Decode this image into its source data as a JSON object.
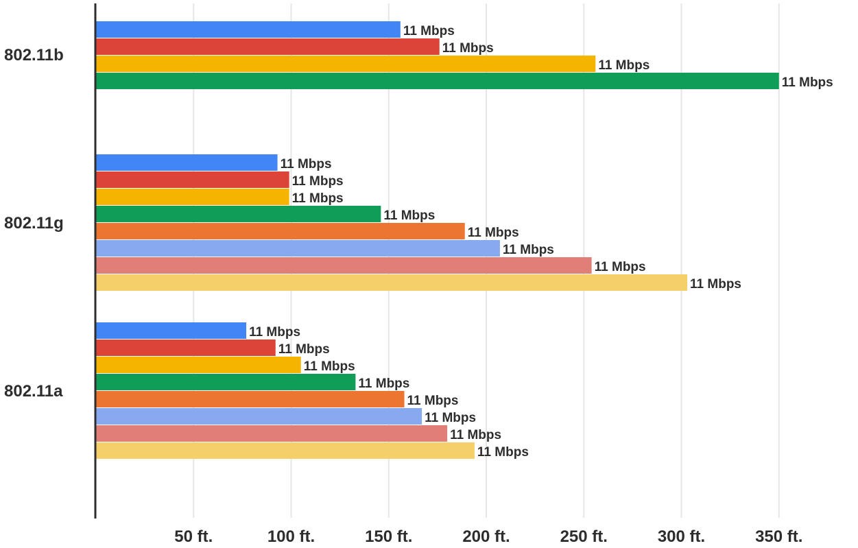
{
  "chart_data": {
    "type": "bar",
    "orientation": "horizontal",
    "xlim": [
      0,
      365
    ],
    "x_ticks": [
      50,
      100,
      150,
      200,
      250,
      300,
      350
    ],
    "x_tick_labels": [
      "50 ft.",
      "100 ft.",
      "150 ft.",
      "200 ft.",
      "250 ft.",
      "300 ft.",
      "350 ft."
    ],
    "grid": true,
    "colors": [
      "#4285F4",
      "#DB4437",
      "#F4B400",
      "#0F9D58",
      "#EC7532",
      "#86A9F0",
      "#E07F78",
      "#F5D06A"
    ],
    "groups": [
      {
        "category": "802.11b",
        "values": [
          156,
          176,
          256,
          350
        ],
        "labels": [
          "11 Mbps",
          "11 Mbps",
          "11 Mbps",
          "11 Mbps"
        ]
      },
      {
        "category": "802.11g",
        "values": [
          93,
          99,
          99,
          146,
          189,
          207,
          254,
          303
        ],
        "labels": [
          "11 Mbps",
          "11 Mbps",
          "11 Mbps",
          "11 Mbps",
          "11 Mbps",
          "11 Mbps",
          "11 Mbps",
          "11 Mbps"
        ]
      },
      {
        "category": "802.11a",
        "values": [
          77,
          92,
          105,
          133,
          158,
          167,
          180,
          194
        ],
        "labels": [
          "11 Mbps",
          "11 Mbps",
          "11 Mbps",
          "11 Mbps",
          "11 Mbps",
          "11 Mbps",
          "11 Mbps",
          "11 Mbps"
        ]
      }
    ]
  }
}
